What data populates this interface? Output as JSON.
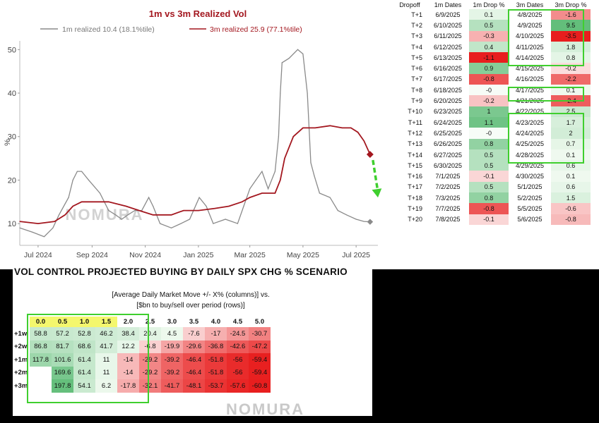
{
  "vol_chart": {
    "title": "1m vs 3m Realized Vol",
    "legend_1m": "1m realized 10.4 (18.1%tile)",
    "legend_3m": "3m realized 25.9 (77.1%tile)",
    "ylabel": "%",
    "watermark": "NOMURA",
    "colors": {
      "series_1m": "#8a8a8a",
      "series_3m": "#a3171f",
      "arrow": "#3fcf2e"
    }
  },
  "chart_data": {
    "type": "line",
    "title": "1m vs 3m Realized Vol",
    "ylabel": "%",
    "ylim": [
      5,
      52
    ],
    "yticks": [
      10,
      20,
      30,
      40,
      50
    ],
    "xlim": [
      "2024-06-10",
      "2025-07-26"
    ],
    "xtick_dates": [
      "2024-07-01",
      "2024-09-01",
      "2024-11-01",
      "2025-01-01",
      "2025-03-01",
      "2025-05-01",
      "2025-07-01"
    ],
    "xtick_labels": [
      "Jul 2024",
      "Sep 2024",
      "Nov 2024",
      "Jan 2025",
      "Mar 2025",
      "May 2025",
      "Jul 2025"
    ],
    "series": [
      {
        "name": "1m realized 10.4 (18.1%tile)",
        "x": [
          "2024-06-10",
          "2024-06-25",
          "2024-07-08",
          "2024-07-18",
          "2024-07-25",
          "2024-08-05",
          "2024-08-10",
          "2024-08-15",
          "2024-08-20",
          "2024-08-28",
          "2024-09-10",
          "2024-09-20",
          "2024-09-28",
          "2024-10-05",
          "2024-10-12",
          "2024-10-20",
          "2024-10-28",
          "2024-11-05",
          "2024-11-10",
          "2024-11-18",
          "2024-12-01",
          "2024-12-12",
          "2024-12-22",
          "2025-01-02",
          "2025-01-10",
          "2025-01-18",
          "2025-02-01",
          "2025-02-15",
          "2025-02-22",
          "2025-03-01",
          "2025-03-08",
          "2025-03-15",
          "2025-03-22",
          "2025-03-30",
          "2025-04-03",
          "2025-04-05",
          "2025-04-07",
          "2025-04-15",
          "2025-04-25",
          "2025-05-01",
          "2025-05-06",
          "2025-05-10",
          "2025-05-14",
          "2025-05-20",
          "2025-06-01",
          "2025-06-10",
          "2025-06-20",
          "2025-07-01",
          "2025-07-10",
          "2025-07-17"
        ],
        "values": [
          9,
          8,
          7,
          9,
          12,
          16,
          20,
          22,
          22,
          20,
          17,
          13,
          12,
          11,
          12,
          13,
          13,
          16,
          14,
          10,
          9,
          10,
          11,
          16,
          14,
          10,
          11,
          10,
          14,
          18,
          20,
          22,
          18,
          22,
          30,
          40,
          47,
          48,
          50,
          49,
          40,
          24,
          21,
          17,
          16,
          13,
          12,
          11,
          10.5,
          10.4
        ]
      },
      {
        "name": "3m realized 25.9 (77.1%tile)",
        "x": [
          "2024-06-10",
          "2024-07-01",
          "2024-07-20",
          "2024-08-01",
          "2024-08-10",
          "2024-08-20",
          "2024-09-01",
          "2024-09-20",
          "2024-10-10",
          "2024-10-25",
          "2024-11-10",
          "2024-12-01",
          "2024-12-15",
          "2025-01-01",
          "2025-01-20",
          "2025-02-05",
          "2025-02-20",
          "2025-03-01",
          "2025-03-15",
          "2025-03-30",
          "2025-04-05",
          "2025-04-10",
          "2025-04-20",
          "2025-05-01",
          "2025-05-15",
          "2025-06-01",
          "2025-06-15",
          "2025-06-25",
          "2025-07-03",
          "2025-07-10",
          "2025-07-17"
        ],
        "values": [
          10.5,
          10,
          10.5,
          12,
          14,
          15,
          15,
          15,
          14,
          13,
          12,
          12,
          13,
          13,
          13.5,
          14,
          15,
          16,
          17,
          17,
          20,
          25,
          30,
          32,
          32,
          32.5,
          32,
          32,
          31,
          29,
          25.9
        ]
      }
    ],
    "annotation": {
      "type": "arrow",
      "from": [
        "2025-07-17",
        25.9
      ],
      "to": [
        "2025-07-26",
        16
      ]
    }
  },
  "dropoff": {
    "headers": [
      "Dropoff",
      "1m Dates",
      "1m Drop %",
      "3m Dates",
      "3m Drop %"
    ],
    "rows": [
      [
        "T+1",
        "6/9/2025",
        "0.1",
        "4/8/2025",
        "-1.6"
      ],
      [
        "T+2",
        "6/10/2025",
        "0.5",
        "4/9/2025",
        "9.5"
      ],
      [
        "T+3",
        "6/11/2025",
        "-0.3",
        "4/10/2025",
        "-3.5"
      ],
      [
        "T+4",
        "6/12/2025",
        "0.4",
        "4/11/2025",
        "1.8"
      ],
      [
        "T+5",
        "6/13/2025",
        "-1.1",
        "4/14/2025",
        "0.8"
      ],
      [
        "T+6",
        "6/16/2025",
        "0.9",
        "4/15/2025",
        "-0.2"
      ],
      [
        "T+7",
        "6/17/2025",
        "-0.8",
        "4/16/2025",
        "-2.2"
      ],
      [
        "T+8",
        "6/18/2025",
        "-0",
        "4/17/2025",
        "0.1"
      ],
      [
        "T+9",
        "6/20/2025",
        "-0.2",
        "4/21/2025",
        "-2.4"
      ],
      [
        "T+10",
        "6/23/2025",
        "1",
        "4/22/2025",
        "2.5"
      ],
      [
        "T+11",
        "6/24/2025",
        "1.1",
        "4/23/2025",
        "1.7"
      ],
      [
        "T+12",
        "6/25/2025",
        "-0",
        "4/24/2025",
        "2"
      ],
      [
        "T+13",
        "6/26/2025",
        "0.8",
        "4/25/2025",
        "0.7"
      ],
      [
        "T+14",
        "6/27/2025",
        "0.5",
        "4/28/2025",
        "0.1"
      ],
      [
        "T+15",
        "6/30/2025",
        "0.5",
        "4/29/2025",
        "0.6"
      ],
      [
        "T+16",
        "7/1/2025",
        "-0.1",
        "4/30/2025",
        "0.1"
      ],
      [
        "T+17",
        "7/2/2025",
        "0.5",
        "5/1/2025",
        "0.6"
      ],
      [
        "T+18",
        "7/3/2025",
        "0.8",
        "5/2/2025",
        "1.5"
      ],
      [
        "T+19",
        "7/7/2025",
        "-0.8",
        "5/5/2025",
        "-0.6"
      ],
      [
        "T+20",
        "7/8/2025",
        "-0.1",
        "5/6/2025",
        "-0.8"
      ]
    ]
  },
  "buying_grid": {
    "title": "VOL CONTROL PROJECTED BUYING BY DAILY SPX CHG %  SCENARIO",
    "subtitle_1": "[Average Daily Market Move +/- X% (columns)] vs.",
    "subtitle_2": "[$bn to buy/sell over period (rows)]",
    "columns": [
      "0.0",
      "0.5",
      "1.0",
      "1.5",
      "2.0",
      "2.5",
      "3.0",
      "3.5",
      "4.0",
      "4.5",
      "5.0"
    ],
    "rows": [
      {
        "label": "+1w",
        "values": [
          "58.8",
          "57.2",
          "52.8",
          "46.2",
          "38.4",
          "20.4",
          "4.5",
          "-7.6",
          "-17",
          "-24.5",
          "-30.7"
        ]
      },
      {
        "label": "+2w",
        "values": [
          "86.8",
          "81.7",
          "68.6",
          "41.7",
          "12.2",
          "-6.8",
          "-19.9",
          "-29.6",
          "-36.8",
          "-42.6",
          "-47.2"
        ]
      },
      {
        "label": "+1m",
        "values": [
          "117.8",
          "101.6",
          "61.4",
          "11",
          "-14",
          "-29.2",
          "-39.2",
          "-46.4",
          "-51.8",
          "-56",
          "-59.4"
        ]
      },
      {
        "label": "+2m",
        "values": [
          "",
          "169.6",
          "61.4",
          "11",
          "-14",
          "-29.2",
          "-39.2",
          "-46.4",
          "-51.8",
          "-56",
          "-59.4"
        ]
      },
      {
        "label": "+3m",
        "values": [
          "",
          "197.8",
          "54.1",
          "6.2",
          "-17.8",
          "-32.1",
          "-41.7",
          "-48.1",
          "-53.7",
          "-57.6",
          "-60.8"
        ]
      }
    ],
    "watermark": "NOMURA"
  }
}
